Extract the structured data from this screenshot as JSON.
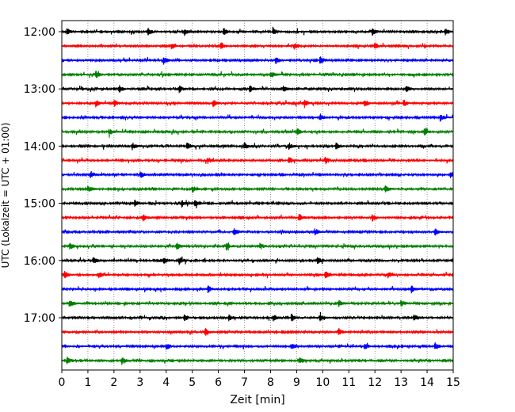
{
  "chart_data": {
    "type": "line",
    "subtype": "helicorder",
    "title": "",
    "xlabel": "Zeit  [min]",
    "ylabel": "UTC (Lokalzeit = UTC + 01:00)",
    "xlim": [
      0,
      15
    ],
    "x_ticks": [
      "0",
      "1",
      "2",
      "3",
      "4",
      "5",
      "6",
      "7",
      "8",
      "9",
      "10",
      "11",
      "12",
      "13",
      "14",
      "15"
    ],
    "y_tick_labels": [
      "12:00",
      "13:00",
      "14:00",
      "15:00",
      "16:00",
      "17:00"
    ],
    "grid": {
      "x_vertical_dotted": true
    },
    "trace_colors": [
      "#000000",
      "#ff0000",
      "#0000ff",
      "#008000"
    ],
    "traces": [
      {
        "start": "12:00",
        "bursts": [
          0.2,
          3.3,
          4.7,
          6.2,
          8.1,
          11.9,
          14.7
        ]
      },
      {
        "start": "12:15",
        "bursts": [
          4.2,
          6.1,
          8.9,
          12.0
        ]
      },
      {
        "start": "12:30",
        "bursts": [
          3.9,
          8.2,
          9.9
        ]
      },
      {
        "start": "12:45",
        "bursts": [
          1.3,
          8.0
        ]
      },
      {
        "start": "13:00",
        "bursts": [
          2.2,
          4.5,
          7.2,
          8.5,
          13.2
        ]
      },
      {
        "start": "13:15",
        "bursts": [
          1.3,
          2.0,
          5.8,
          9.3,
          11.6,
          13.1
        ]
      },
      {
        "start": "13:30",
        "bursts": [
          9.9,
          14.5
        ]
      },
      {
        "start": "13:45",
        "bursts": [
          1.8,
          9.0,
          13.9
        ]
      },
      {
        "start": "14:00",
        "bursts": [
          2.7,
          4.8,
          7.0,
          8.7,
          10.5
        ]
      },
      {
        "start": "14:15",
        "bursts": [
          5.6,
          8.7,
          10.1
        ]
      },
      {
        "start": "14:30",
        "bursts": [
          1.1,
          3.0,
          14.9
        ]
      },
      {
        "start": "14:45",
        "bursts": [
          1.0,
          5.0,
          12.4
        ]
      },
      {
        "start": "15:00",
        "bursts": [
          2.8,
          4.6,
          5.1
        ]
      },
      {
        "start": "15:15",
        "bursts": [
          3.1,
          9.1,
          11.9
        ]
      },
      {
        "start": "15:30",
        "bursts": [
          6.6,
          9.7,
          14.3
        ]
      },
      {
        "start": "15:45",
        "bursts": [
          0.3,
          4.4,
          6.3,
          7.6
        ]
      },
      {
        "start": "16:00",
        "bursts": [
          1.2,
          3.9,
          4.5,
          9.8,
          15.0
        ]
      },
      {
        "start": "16:15",
        "bursts": [
          0.1,
          1.4,
          10.1,
          12.5
        ]
      },
      {
        "start": "16:30",
        "bursts": [
          5.6,
          13.4
        ]
      },
      {
        "start": "16:45",
        "bursts": [
          0.3,
          10.6,
          13.0
        ]
      },
      {
        "start": "17:00",
        "bursts": [
          4.7,
          6.4,
          8.1,
          8.8,
          9.9,
          13.5
        ]
      },
      {
        "start": "17:15",
        "bursts": [
          5.5,
          10.6
        ]
      },
      {
        "start": "17:30",
        "bursts": [
          4.0,
          8.8,
          11.6,
          14.3
        ]
      },
      {
        "start": "17:45",
        "bursts": [
          0.2,
          2.3,
          9.1
        ]
      }
    ]
  }
}
